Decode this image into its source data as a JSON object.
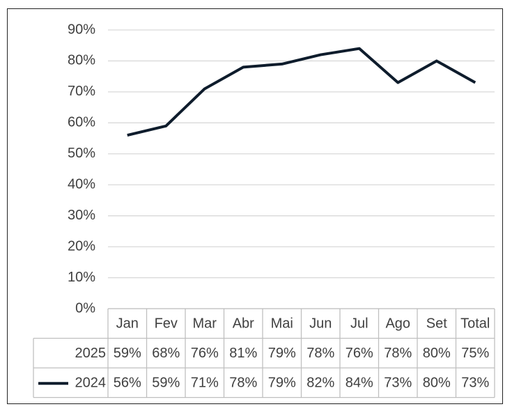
{
  "chart_data": {
    "type": "line",
    "categories": [
      "Jan",
      "Fev",
      "Mar",
      "Abr",
      "Mai",
      "Jun",
      "Jul",
      "Ago",
      "Set",
      "Total"
    ],
    "series": [
      {
        "name": "2025",
        "values": [
          59,
          68,
          76,
          81,
          79,
          78,
          76,
          78,
          80,
          75
        ],
        "value_labels": [
          "59%",
          "68%",
          "76%",
          "81%",
          "79%",
          "78%",
          "76%",
          "78%",
          "80%",
          "75%"
        ]
      },
      {
        "name": "2024",
        "color": "#0e1c2c",
        "values": [
          56,
          59,
          71,
          78,
          79,
          82,
          84,
          73,
          80,
          73
        ],
        "value_labels": [
          "56%",
          "59%",
          "71%",
          "78%",
          "79%",
          "82%",
          "84%",
          "73%",
          "80%",
          "73%"
        ]
      }
    ],
    "ylim": [
      0,
      90
    ],
    "yticks": [
      {
        "value": 0,
        "label": "0%"
      },
      {
        "value": 10,
        "label": "10%"
      },
      {
        "value": 20,
        "label": "20%"
      },
      {
        "value": 30,
        "label": "30%"
      },
      {
        "value": 40,
        "label": "40%"
      },
      {
        "value": 50,
        "label": "50%"
      },
      {
        "value": 60,
        "label": "60%"
      },
      {
        "value": 70,
        "label": "70%"
      },
      {
        "value": 80,
        "label": "80%"
      },
      {
        "value": 90,
        "label": "90%"
      }
    ],
    "grid": true,
    "data_table": true
  }
}
